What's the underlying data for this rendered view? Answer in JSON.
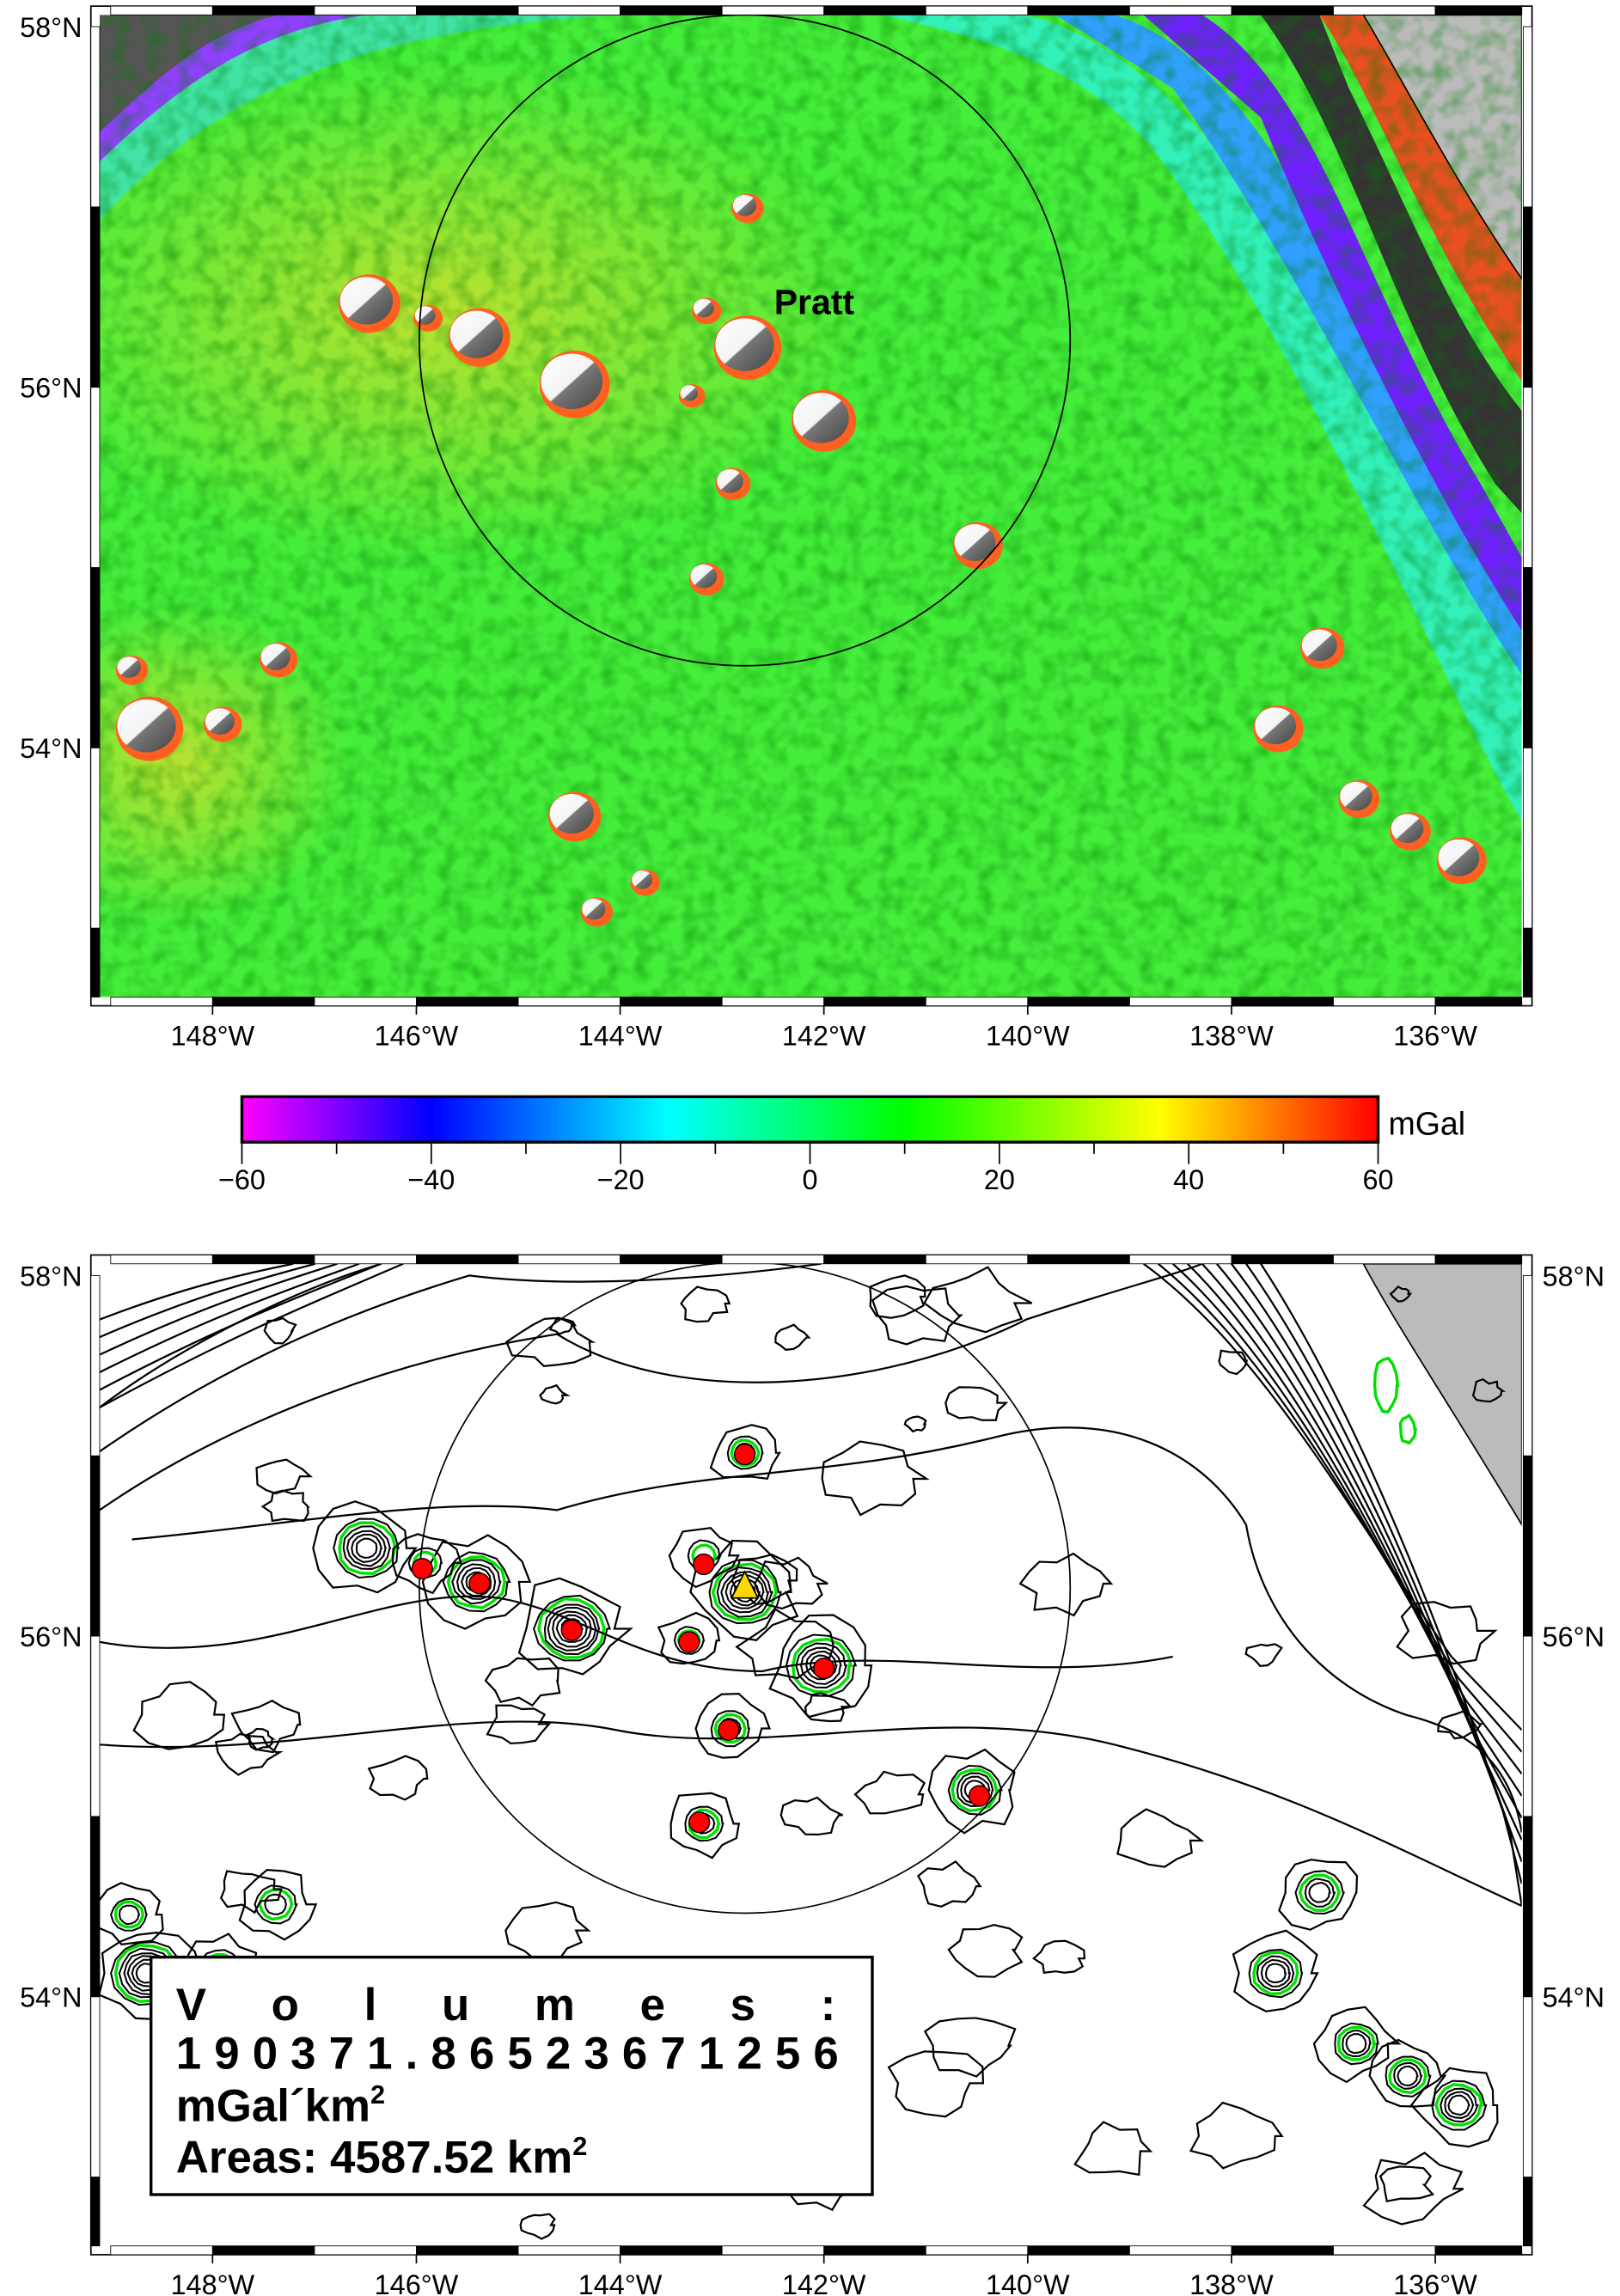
{
  "top_map": {
    "label": "Pratt",
    "lon_ticks": [
      "148°W",
      "146°W",
      "144°W",
      "142°W",
      "140°W",
      "138°W",
      "136°W"
    ],
    "lon_values": [
      -148,
      -146,
      -144,
      -142,
      -140,
      -138,
      -136
    ],
    "lat_ticks": [
      "58°N",
      "56°N",
      "54°N"
    ],
    "lat_values": [
      58,
      56,
      54
    ]
  },
  "colorbar": {
    "unit": "mGal",
    "ticks": [
      "−60",
      "−40",
      "−20",
      "0",
      "20",
      "40",
      "60"
    ],
    "range": [
      -60,
      60
    ],
    "colors": {
      "-60": "#ff00ff",
      "-40": "#0000ff",
      "-15": "#00ffff",
      "10": "#00ff00",
      "37": "#ffff00",
      "60": "#ff0000"
    }
  },
  "bottom_map": {
    "lon_ticks": [
      "148°W",
      "146°W",
      "144°W",
      "142°W",
      "140°W",
      "138°W",
      "136°W"
    ],
    "lat_ticks_left": [
      "58°N",
      "56°N",
      "54°N"
    ],
    "lat_ticks_right": [
      "58°N",
      "56°N",
      "54°N"
    ],
    "volumes_label": "V o l u m e s :",
    "volumes_value": "190371.86523671256",
    "volumes_unit": "mGal´km",
    "volumes_unit_exp": "2",
    "areas_text": "Areas: 4587.52 km",
    "areas_exp": "2",
    "contour_color": "#000000",
    "highlight_contour_color": "#00e000",
    "marker_color": "#ff0000",
    "center_marker_color": "#ffd700"
  }
}
